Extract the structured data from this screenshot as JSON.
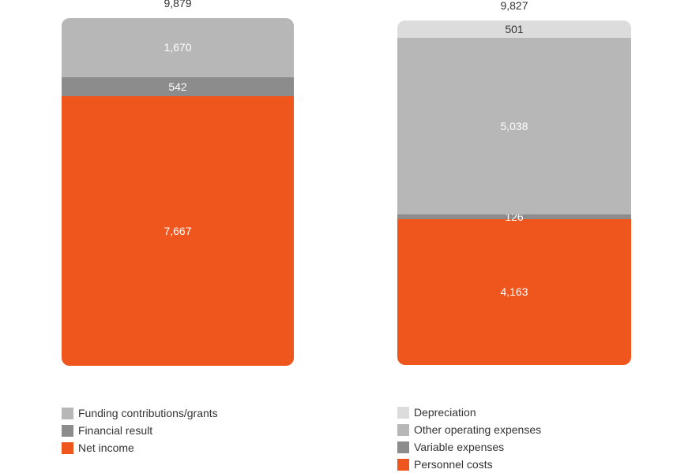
{
  "chart_data": [
    {
      "type": "bar",
      "stacked": true,
      "total": 9879,
      "total_label": "9,879",
      "series": [
        {
          "name": "Net income",
          "value": 7667,
          "label": "7,667",
          "color": "#ee561d"
        },
        {
          "name": "Financial result",
          "value": 542,
          "label": "542",
          "color": "#8c8c8c"
        },
        {
          "name": "Funding contributions/grants",
          "value": 1670,
          "label": "1,670",
          "color": "#b7b7b7"
        }
      ],
      "legend": [
        {
          "label": "Funding contributions/grants",
          "color": "#b7b7b7"
        },
        {
          "label": "Financial result",
          "color": "#8c8c8c"
        },
        {
          "label": "Net income",
          "color": "#ee561d"
        }
      ],
      "legend_position": "bottom"
    },
    {
      "type": "bar",
      "stacked": true,
      "total": 9827,
      "total_label": "9,827",
      "series": [
        {
          "name": "Personnel costs",
          "value": 4163,
          "label": "4,163",
          "color": "#ee561d"
        },
        {
          "name": "Variable expenses",
          "value": 126,
          "label": "126",
          "color": "#8c8c8c"
        },
        {
          "name": "Other operating expenses",
          "value": 5038,
          "label": "5,038",
          "color": "#b7b7b7"
        },
        {
          "name": "Depreciation",
          "value": 501,
          "label": "501",
          "color": "#dcdcdc"
        }
      ],
      "legend": [
        {
          "label": "Depreciation",
          "color": "#dcdcdc"
        },
        {
          "label": "Other operating expenses",
          "color": "#b7b7b7"
        },
        {
          "label": "Variable expenses",
          "color": "#8c8c8c"
        },
        {
          "label": "Personnel costs",
          "color": "#ee561d"
        }
      ],
      "legend_position": "bottom"
    }
  ]
}
